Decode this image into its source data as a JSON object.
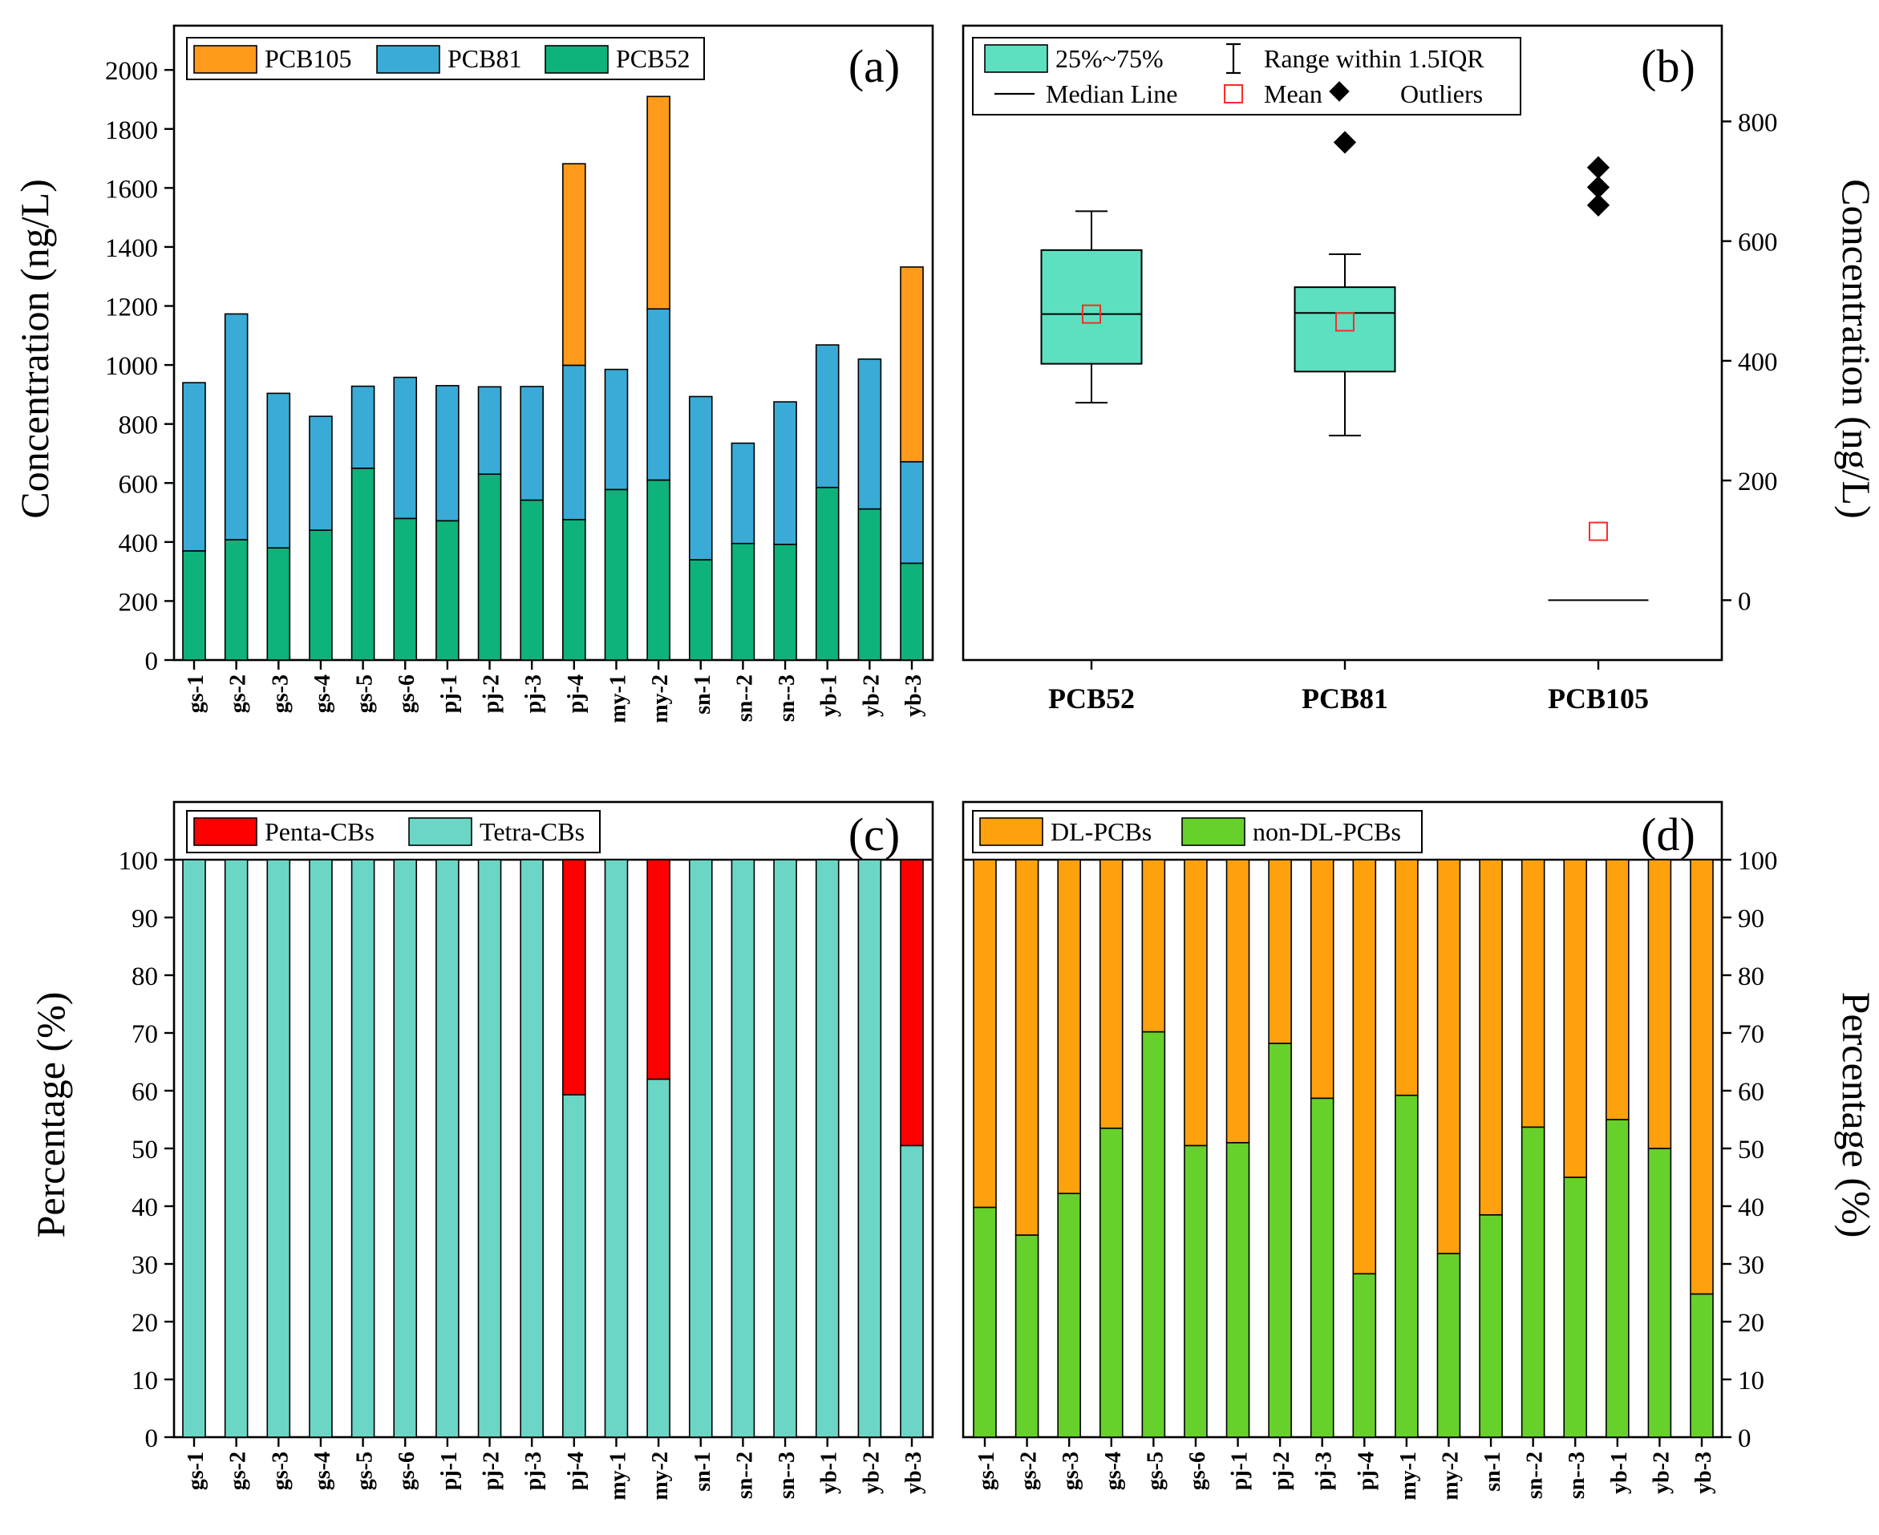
{
  "colors": {
    "pcb105": "#ff9a1a",
    "pcb81": "#3aabd6",
    "pcb52": "#0db37a",
    "box": "#5de0c0",
    "mean": "#ff2a2a",
    "penta": "#ff0000",
    "tetra": "#6bd6c5",
    "dl": "#ffa10d",
    "nondl": "#66d12a"
  },
  "chart_data": [
    {
      "panel": "(a)",
      "type": "bar",
      "stacked": true,
      "ylabel": "Concentration (ng/L)",
      "ylim": [
        0,
        2150
      ],
      "yticks": [
        "0",
        "200",
        "400",
        "600",
        "800",
        "1000",
        "1200",
        "1400",
        "1600",
        "1800",
        "2000"
      ],
      "categories": [
        "gs-1",
        "gs-2",
        "gs-3",
        "gs-4",
        "gs-5",
        "gs-6",
        "pj-1",
        "pj-2",
        "pj-3",
        "pj-4",
        "my-1",
        "my-2",
        "sn-1",
        "sn--2",
        "sn--3",
        "yb-1",
        "yb-2",
        "yb-3"
      ],
      "legend": [
        "PCB105",
        "PCB81",
        "PCB52"
      ],
      "series": [
        {
          "name": "PCB52",
          "values": [
            370,
            408,
            380,
            440,
            650,
            480,
            472,
            630,
            542,
            476,
            578,
            610,
            340,
            395,
            392,
            585,
            512,
            328
          ]
        },
        {
          "name": "PCB81",
          "values": [
            570,
            765,
            524,
            386,
            278,
            478,
            458,
            296,
            385,
            523,
            407,
            580,
            553,
            340,
            483,
            483,
            508,
            344
          ]
        },
        {
          "name": "PCB105",
          "values": [
            0,
            0,
            0,
            0,
            0,
            0,
            0,
            0,
            0,
            683,
            0,
            720,
            0,
            0,
            0,
            0,
            0,
            660
          ]
        }
      ]
    },
    {
      "panel": "(b)",
      "type": "box",
      "ylabel": "Concentration (ng/L)",
      "ylim": [
        -100,
        960
      ],
      "yticks": [
        "0",
        "200",
        "400",
        "600",
        "800"
      ],
      "categories": [
        "PCB52",
        "PCB81",
        "PCB105"
      ],
      "legend": [
        "25%~75%",
        "Range within 1.5IQR",
        "Median Line",
        "Mean",
        "Outliers"
      ],
      "boxes": [
        {
          "name": "PCB52",
          "q1": 395,
          "median": 478,
          "q3": 585,
          "whisker_low": 330,
          "whisker_high": 650,
          "mean": 478,
          "outliers": []
        },
        {
          "name": "PCB81",
          "q1": 382,
          "median": 480,
          "q3": 523,
          "whisker_low": 275,
          "whisker_high": 578,
          "mean": 465,
          "outliers": [
            765
          ]
        },
        {
          "name": "PCB105",
          "q1": 0,
          "median": 0,
          "q3": 0,
          "whisker_low": 0,
          "whisker_high": 0,
          "mean": 115,
          "outliers": [
            660,
            690,
            723
          ]
        }
      ]
    },
    {
      "panel": "(c)",
      "type": "bar",
      "stacked": true,
      "ylabel": "Percentage  (%)",
      "ylim": [
        0,
        110
      ],
      "yticks": [
        "0",
        "10",
        "20",
        "30",
        "40",
        "50",
        "60",
        "70",
        "80",
        "90",
        "100"
      ],
      "categories": [
        "gs-1",
        "gs-2",
        "gs-3",
        "gs-4",
        "gs-5",
        "gs-6",
        "pj-1",
        "pj-2",
        "pj-3",
        "pj-4",
        "my-1",
        "my-2",
        "sn-1",
        "sn--2",
        "sn--3",
        "yb-1",
        "yb-2",
        "yb-3"
      ],
      "legend": [
        "Penta-CBs",
        "Tetra-CBs"
      ],
      "series": [
        {
          "name": "Tetra-CBs",
          "values": [
            100,
            100,
            100,
            100,
            100,
            100,
            100,
            100,
            100,
            59.3,
            100,
            62,
            100,
            100,
            100,
            100,
            100,
            50.5
          ]
        },
        {
          "name": "Penta-CBs",
          "values": [
            0,
            0,
            0,
            0,
            0,
            0,
            0,
            0,
            0,
            40.7,
            0,
            38,
            0,
            0,
            0,
            0,
            0,
            49.5
          ]
        }
      ]
    },
    {
      "panel": "(d)",
      "type": "bar",
      "stacked": true,
      "ylabel": "Percentage  (%)",
      "ylim": [
        0,
        110
      ],
      "yticks": [
        "0",
        "10",
        "20",
        "30",
        "40",
        "50",
        "60",
        "70",
        "80",
        "90",
        "100"
      ],
      "categories": [
        "gs-1",
        "gs-2",
        "gs-3",
        "gs-4",
        "gs-5",
        "gs-6",
        "pj-1",
        "pj-2",
        "pj-3",
        "pj-4",
        "my-1",
        "my-2",
        "sn-1",
        "sn--2",
        "sn--3",
        "yb-1",
        "yb-2",
        "yb-3"
      ],
      "legend": [
        "DL-PCBs",
        "non-DL-PCBs"
      ],
      "series": [
        {
          "name": "non-DL-PCBs",
          "values": [
            39.8,
            35,
            42.2,
            53.5,
            70.2,
            50.5,
            51,
            68.2,
            58.7,
            28.3,
            59.2,
            31.8,
            38.5,
            53.7,
            45,
            55,
            50,
            24.8
          ]
        },
        {
          "name": "DL-PCBs",
          "values": [
            60.2,
            65,
            57.8,
            46.5,
            29.8,
            49.5,
            49,
            31.8,
            41.3,
            71.7,
            40.8,
            68.2,
            61.5,
            46.3,
            55,
            45,
            50,
            75.2
          ]
        }
      ]
    }
  ]
}
